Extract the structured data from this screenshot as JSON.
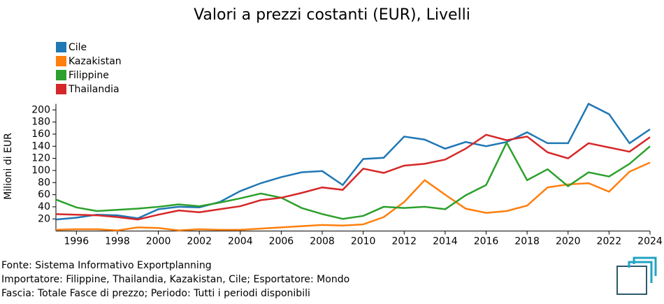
{
  "chart_data": {
    "type": "line",
    "title": "Valori a prezzi costanti (EUR), Livelli",
    "y_label": "Milioni di EUR",
    "x": [
      1995,
      1996,
      1997,
      1998,
      1999,
      2000,
      2001,
      2002,
      2003,
      2004,
      2005,
      2006,
      2007,
      2008,
      2009,
      2010,
      2011,
      2012,
      2013,
      2014,
      2015,
      2016,
      2017,
      2018,
      2019,
      2020,
      2021,
      2022,
      2023,
      2024
    ],
    "series": [
      {
        "name": "Cile",
        "color": "#1f77b4",
        "values": [
          19,
          22,
          27,
          26,
          21,
          36,
          40,
          39,
          48,
          66,
          79,
          89,
          97,
          99,
          76,
          119,
          121,
          156,
          151,
          136,
          147,
          140,
          147,
          163,
          145,
          145,
          210,
          193,
          145,
          168
        ]
      },
      {
        "name": "Kazakistan",
        "color": "#ff7f0e",
        "values": [
          2,
          3,
          3,
          1,
          6,
          5,
          1,
          3,
          2,
          2,
          4,
          6,
          8,
          10,
          9,
          11,
          23,
          48,
          84,
          60,
          37,
          30,
          33,
          42,
          72,
          77,
          79,
          65,
          98,
          113
        ]
      },
      {
        "name": "Filippine",
        "color": "#2ca02c",
        "values": [
          52,
          39,
          33,
          35,
          37,
          40,
          44,
          41,
          47,
          54,
          62,
          55,
          38,
          28,
          20,
          25,
          40,
          38,
          40,
          36,
          59,
          76,
          146,
          84,
          102,
          74,
          97,
          90,
          111,
          140
        ]
      },
      {
        "name": "Thailandia",
        "color": "#d62728",
        "values": [
          28,
          27,
          26,
          23,
          19,
          27,
          34,
          31,
          36,
          41,
          51,
          55,
          63,
          72,
          68,
          103,
          96,
          108,
          111,
          118,
          136,
          159,
          150,
          156,
          130,
          120,
          145,
          138,
          131,
          155
        ]
      }
    ],
    "xlim": [
      1995,
      2024
    ],
    "xticks": [
      1996,
      1998,
      2000,
      2002,
      2004,
      2006,
      2008,
      2010,
      2012,
      2014,
      2016,
      2018,
      2020,
      2022,
      2024
    ],
    "ylim": [
      0,
      210
    ],
    "yticks": [
      20,
      40,
      60,
      80,
      100,
      120,
      140,
      160,
      180,
      200
    ],
    "footer": [
      "Fonte: Sistema Informativo Exportplanning",
      "Importatore: Filippine, Thailandia, Kazakistan, Cile; Esportatore: Mondo",
      "Fascia: Totale Fasce di prezzo; Periodo: Tutti i periodi disponibili"
    ]
  }
}
